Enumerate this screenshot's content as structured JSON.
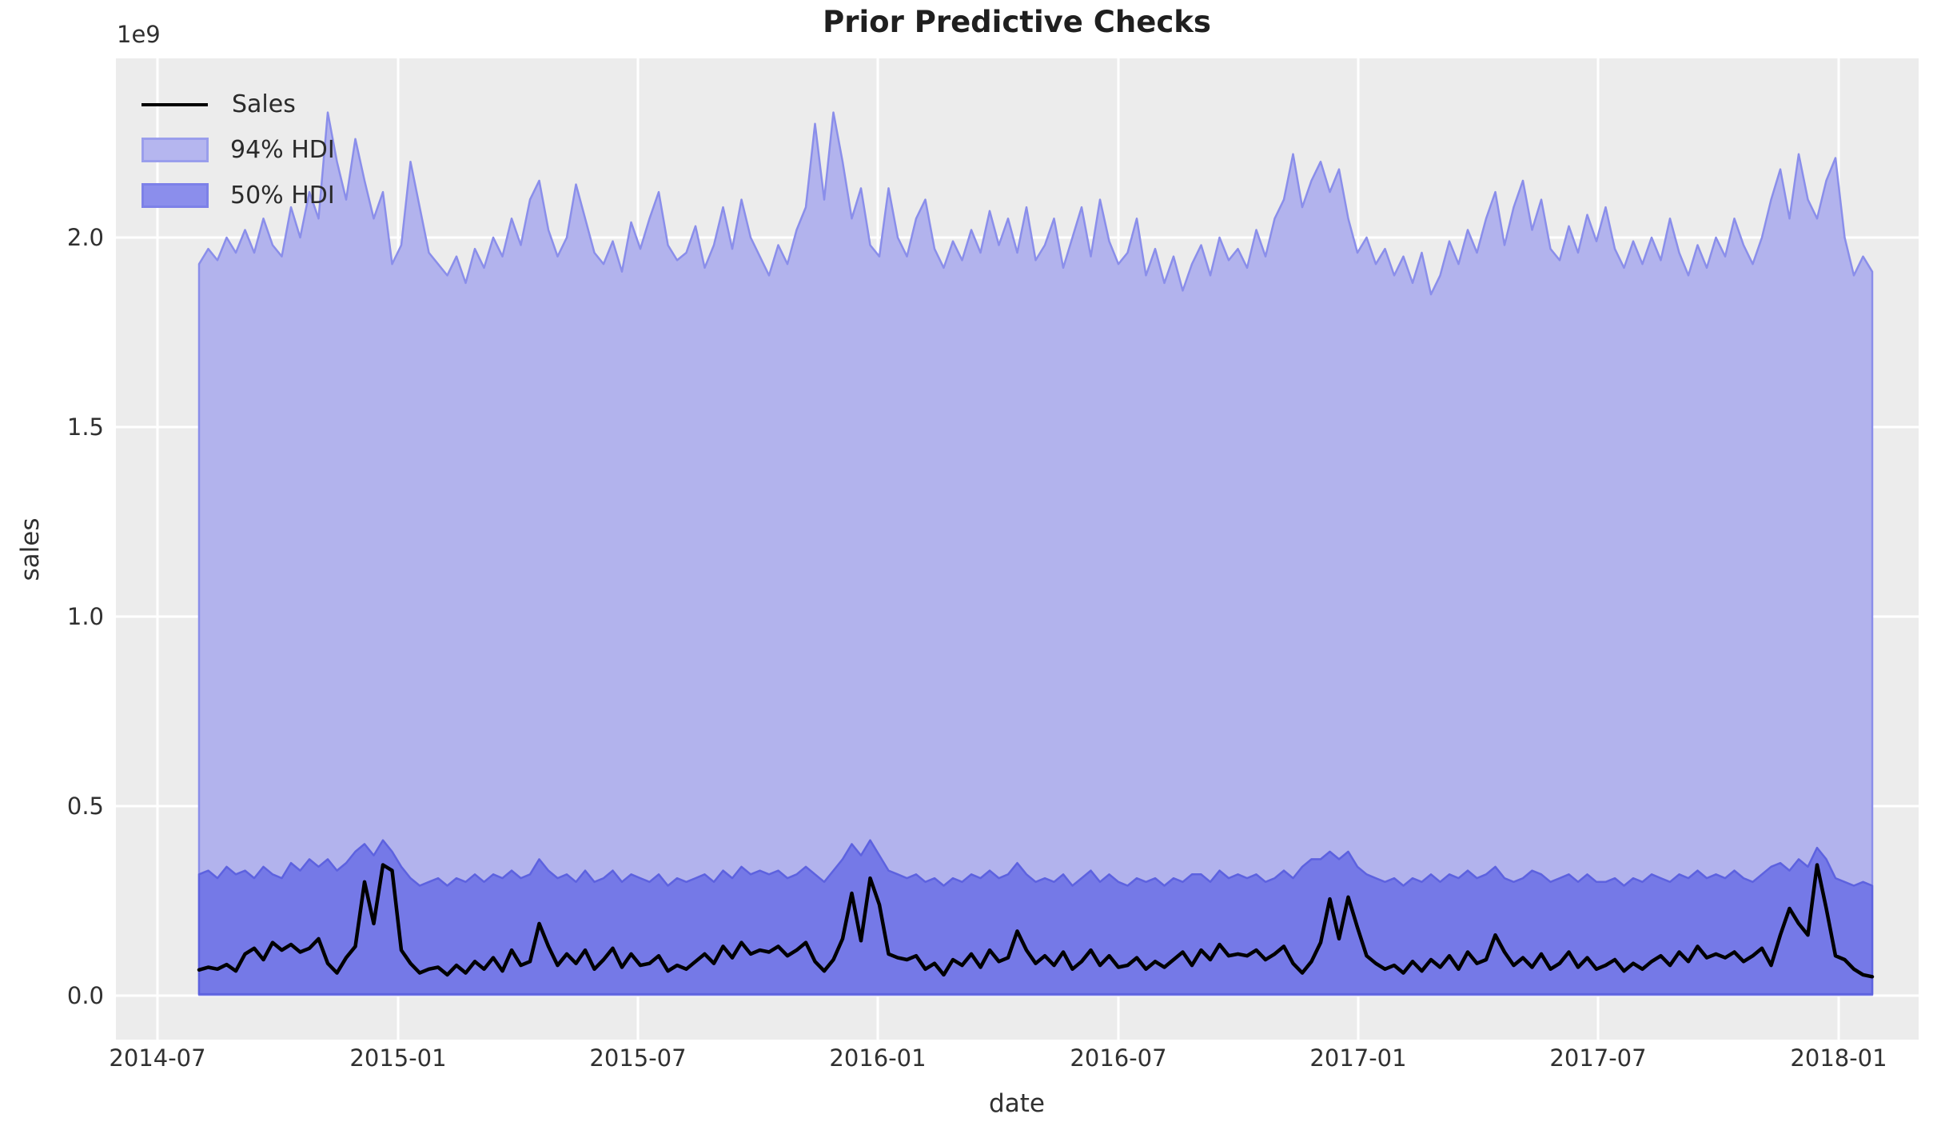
{
  "chart_data": {
    "type": "area",
    "title": "Prior Predictive Checks",
    "xlabel": "date",
    "ylabel": "sales",
    "y_offset_label": "1e9",
    "y_unit_multiplier": 1000000000,
    "grid": true,
    "legend_position": "upper left",
    "x_range": [
      "2014-08",
      "2018-02"
    ],
    "x_freq": "weekly",
    "ylim": [
      -0.12,
      2.47
    ],
    "x_tick_labels": [
      "2014-07",
      "2015-01",
      "2015-07",
      "2016-01",
      "2016-07",
      "2017-01",
      "2017-07",
      "2018-01"
    ],
    "y_tick_labels": [
      "0.0",
      "0.5",
      "1.0",
      "1.5",
      "2.0"
    ],
    "y_tick_values": [
      0.0,
      0.5,
      1.0,
      1.5,
      2.0
    ],
    "legend": {
      "sales_label": "Sales",
      "hdi94_label": "94% HDI",
      "hdi50_label": "50% HDI"
    },
    "colors": {
      "figure_bg": "#ffffff",
      "axes_bg": "#ececec",
      "grid": "#ffffff",
      "sales_line": "#000000",
      "hdi94_fill": "#b2b3ed",
      "hdi94_edge": "#8a8eea",
      "hdi50_fill": "#7579e7",
      "hdi50_edge": "#5d62df",
      "text": "#303030"
    },
    "series": [
      {
        "name": "Sales",
        "type": "line",
        "values": [
          0.068,
          0.075,
          0.07,
          0.082,
          0.065,
          0.11,
          0.125,
          0.095,
          0.14,
          0.12,
          0.135,
          0.115,
          0.125,
          0.15,
          0.085,
          0.06,
          0.1,
          0.13,
          0.3,
          0.19,
          0.345,
          0.33,
          0.12,
          0.085,
          0.06,
          0.07,
          0.075,
          0.055,
          0.08,
          0.06,
          0.09,
          0.07,
          0.1,
          0.065,
          0.12,
          0.08,
          0.09,
          0.19,
          0.13,
          0.08,
          0.11,
          0.085,
          0.12,
          0.07,
          0.095,
          0.125,
          0.075,
          0.11,
          0.08,
          0.085,
          0.105,
          0.065,
          0.08,
          0.07,
          0.09,
          0.11,
          0.085,
          0.13,
          0.1,
          0.14,
          0.11,
          0.12,
          0.115,
          0.13,
          0.105,
          0.12,
          0.14,
          0.09,
          0.065,
          0.095,
          0.15,
          0.27,
          0.145,
          0.31,
          0.24,
          0.11,
          0.1,
          0.095,
          0.105,
          0.07,
          0.085,
          0.055,
          0.095,
          0.08,
          0.11,
          0.075,
          0.12,
          0.09,
          0.1,
          0.17,
          0.12,
          0.085,
          0.105,
          0.08,
          0.115,
          0.07,
          0.09,
          0.12,
          0.08,
          0.105,
          0.075,
          0.08,
          0.1,
          0.07,
          0.09,
          0.075,
          0.095,
          0.115,
          0.08,
          0.12,
          0.095,
          0.135,
          0.105,
          0.11,
          0.105,
          0.12,
          0.095,
          0.11,
          0.13,
          0.085,
          0.06,
          0.09,
          0.14,
          0.255,
          0.15,
          0.26,
          0.18,
          0.105,
          0.085,
          0.07,
          0.08,
          0.06,
          0.09,
          0.065,
          0.095,
          0.075,
          0.105,
          0.07,
          0.115,
          0.085,
          0.095,
          0.16,
          0.115,
          0.08,
          0.1,
          0.075,
          0.11,
          0.07,
          0.085,
          0.115,
          0.075,
          0.1,
          0.07,
          0.08,
          0.095,
          0.065,
          0.085,
          0.07,
          0.09,
          0.105,
          0.08,
          0.115,
          0.09,
          0.13,
          0.1,
          0.11,
          0.1,
          0.115,
          0.09,
          0.105,
          0.125,
          0.08,
          0.16,
          0.23,
          0.19,
          0.16,
          0.345,
          0.23,
          0.105,
          0.095,
          0.07,
          0.055,
          0.05
        ]
      },
      {
        "name": "94% HDI",
        "type": "band",
        "lower": 0.002,
        "upper": [
          1.93,
          1.97,
          1.94,
          2.0,
          1.96,
          2.02,
          1.96,
          2.05,
          1.98,
          1.95,
          2.08,
          2.0,
          2.12,
          2.05,
          2.33,
          2.2,
          2.1,
          2.26,
          2.15,
          2.05,
          2.12,
          1.93,
          1.98,
          2.2,
          2.08,
          1.96,
          1.93,
          1.9,
          1.95,
          1.88,
          1.97,
          1.92,
          2.0,
          1.95,
          2.05,
          1.98,
          2.1,
          2.15,
          2.02,
          1.95,
          2.0,
          2.14,
          2.05,
          1.96,
          1.93,
          1.99,
          1.91,
          2.04,
          1.97,
          2.05,
          2.12,
          1.98,
          1.94,
          1.96,
          2.03,
          1.92,
          1.98,
          2.08,
          1.97,
          2.1,
          2.0,
          1.95,
          1.9,
          1.98,
          1.93,
          2.02,
          2.08,
          2.3,
          2.1,
          2.33,
          2.2,
          2.05,
          2.13,
          1.98,
          1.95,
          2.13,
          2.0,
          1.95,
          2.05,
          2.1,
          1.97,
          1.92,
          1.99,
          1.94,
          2.02,
          1.96,
          2.07,
          1.98,
          2.05,
          1.96,
          2.08,
          1.94,
          1.98,
          2.05,
          1.92,
          2.0,
          2.08,
          1.95,
          2.1,
          1.99,
          1.93,
          1.96,
          2.05,
          1.9,
          1.97,
          1.88,
          1.95,
          1.86,
          1.93,
          1.98,
          1.9,
          2.0,
          1.94,
          1.97,
          1.92,
          2.02,
          1.95,
          2.05,
          2.1,
          2.22,
          2.08,
          2.15,
          2.2,
          2.12,
          2.18,
          2.05,
          1.96,
          2.0,
          1.93,
          1.97,
          1.9,
          1.95,
          1.88,
          1.96,
          1.85,
          1.9,
          1.99,
          1.93,
          2.02,
          1.96,
          2.05,
          2.12,
          1.98,
          2.08,
          2.15,
          2.02,
          2.1,
          1.97,
          1.94,
          2.03,
          1.96,
          2.06,
          1.99,
          2.08,
          1.97,
          1.92,
          1.99,
          1.93,
          2.0,
          1.94,
          2.05,
          1.96,
          1.9,
          1.98,
          1.92,
          2.0,
          1.95,
          2.05,
          1.98,
          1.93,
          2.0,
          2.1,
          2.18,
          2.05,
          2.22,
          2.1,
          2.05,
          2.15,
          2.21,
          2.0,
          1.9,
          1.95,
          1.91
        ]
      },
      {
        "name": "50% HDI",
        "type": "band",
        "lower": 0.004,
        "upper": [
          0.32,
          0.33,
          0.31,
          0.34,
          0.32,
          0.33,
          0.31,
          0.34,
          0.32,
          0.31,
          0.35,
          0.33,
          0.36,
          0.34,
          0.36,
          0.33,
          0.35,
          0.38,
          0.4,
          0.37,
          0.41,
          0.38,
          0.34,
          0.31,
          0.29,
          0.3,
          0.31,
          0.29,
          0.31,
          0.3,
          0.32,
          0.3,
          0.32,
          0.31,
          0.33,
          0.31,
          0.32,
          0.36,
          0.33,
          0.31,
          0.32,
          0.3,
          0.33,
          0.3,
          0.31,
          0.33,
          0.3,
          0.32,
          0.31,
          0.3,
          0.32,
          0.29,
          0.31,
          0.3,
          0.31,
          0.32,
          0.3,
          0.33,
          0.31,
          0.34,
          0.32,
          0.33,
          0.32,
          0.33,
          0.31,
          0.32,
          0.34,
          0.32,
          0.3,
          0.33,
          0.36,
          0.4,
          0.37,
          0.41,
          0.37,
          0.33,
          0.32,
          0.31,
          0.32,
          0.3,
          0.31,
          0.29,
          0.31,
          0.3,
          0.32,
          0.31,
          0.33,
          0.31,
          0.32,
          0.35,
          0.32,
          0.3,
          0.31,
          0.3,
          0.32,
          0.29,
          0.31,
          0.33,
          0.3,
          0.32,
          0.3,
          0.29,
          0.31,
          0.3,
          0.31,
          0.29,
          0.31,
          0.3,
          0.32,
          0.32,
          0.3,
          0.33,
          0.31,
          0.32,
          0.31,
          0.32,
          0.3,
          0.31,
          0.33,
          0.31,
          0.34,
          0.36,
          0.36,
          0.38,
          0.36,
          0.38,
          0.34,
          0.32,
          0.31,
          0.3,
          0.31,
          0.29,
          0.31,
          0.3,
          0.32,
          0.3,
          0.32,
          0.31,
          0.33,
          0.31,
          0.32,
          0.34,
          0.31,
          0.3,
          0.31,
          0.33,
          0.32,
          0.3,
          0.31,
          0.32,
          0.3,
          0.32,
          0.3,
          0.3,
          0.31,
          0.29,
          0.31,
          0.3,
          0.32,
          0.31,
          0.3,
          0.32,
          0.31,
          0.33,
          0.31,
          0.32,
          0.31,
          0.33,
          0.31,
          0.3,
          0.32,
          0.34,
          0.35,
          0.33,
          0.36,
          0.34,
          0.39,
          0.36,
          0.31,
          0.3,
          0.29,
          0.3,
          0.29
        ]
      }
    ]
  }
}
